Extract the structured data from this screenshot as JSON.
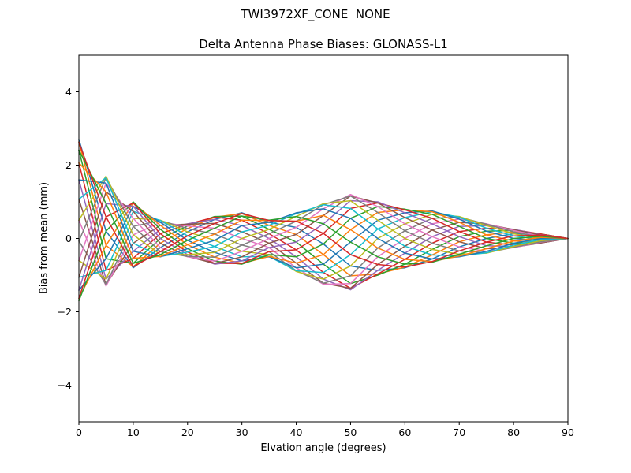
{
  "figure": {
    "suptitle": "TWI3972XF_CONE  NONE",
    "axes_title": "Delta Antenna Phase Biases: GLONASS-L1",
    "xlabel": "Elvation angle (degrees)",
    "ylabel": "Bias from mean (mm)",
    "background_color": "#ffffff",
    "axes_edge_color": "#000000",
    "text_color": "#000000"
  },
  "chart_data": {
    "type": "line",
    "title": "Delta Antenna Phase Biases: GLONASS-L1",
    "suptitle": "TWI3972XF_CONE  NONE",
    "xlabel": "Elvation angle (degrees)",
    "ylabel": "Bias from mean (mm)",
    "xlim": [
      0,
      90
    ],
    "ylim": [
      -5,
      5
    ],
    "xticks": [
      0,
      10,
      20,
      30,
      40,
      50,
      60,
      70,
      80,
      90
    ],
    "yticks": [
      -4,
      -2,
      0,
      2,
      4
    ],
    "xtick_labels": [
      "0",
      "10",
      "20",
      "30",
      "40",
      "50",
      "60",
      "70",
      "80",
      "90"
    ],
    "ytick_labels": [
      "−4",
      "−2",
      "0",
      "2",
      "4"
    ],
    "grid": false,
    "legend": false,
    "x": [
      0,
      5,
      10,
      15,
      20,
      25,
      30,
      35,
      40,
      45,
      50,
      55,
      60,
      65,
      70,
      75,
      80,
      85,
      90
    ],
    "series": [
      {
        "name": "s01",
        "color": "#1f77b4",
        "values": [
          2.7,
          0.2,
          -0.8,
          -0.25,
          0.18,
          0.52,
          0.7,
          0.44,
          0.3,
          -0.15,
          -0.75,
          -0.87,
          -0.8,
          -0.56,
          -0.23,
          0.0,
          0.13,
          0.1,
          0.0
        ]
      },
      {
        "name": "s02",
        "color": "#ff7f0e",
        "values": [
          2.63,
          -0.19,
          -0.77,
          -0.13,
          0.27,
          0.58,
          0.68,
          0.36,
          0.11,
          -0.44,
          -1.02,
          -0.97,
          -0.78,
          -0.45,
          -0.09,
          0.1,
          0.18,
          0.12,
          0.0
        ]
      },
      {
        "name": "s03",
        "color": "#2ca02c",
        "values": [
          2.41,
          -0.55,
          -0.68,
          0.0,
          0.34,
          0.6,
          0.61,
          0.25,
          -0.1,
          -0.7,
          -1.23,
          -1.0,
          -0.7,
          -0.3,
          0.05,
          0.2,
          0.22,
          0.12,
          0.0
        ]
      },
      {
        "name": "s04",
        "color": "#d62728",
        "values": [
          2.06,
          -0.87,
          -0.54,
          0.13,
          0.39,
          0.58,
          0.5,
          0.13,
          -0.31,
          -0.93,
          -1.36,
          -0.97,
          -0.57,
          -0.13,
          0.19,
          0.28,
          0.24,
          0.12,
          0.0
        ]
      },
      {
        "name": "s05",
        "color": "#9467bd",
        "values": [
          1.6,
          -1.11,
          -0.35,
          0.25,
          0.4,
          0.52,
          0.35,
          0.0,
          -0.5,
          -1.11,
          -1.4,
          -0.87,
          -0.4,
          0.05,
          0.33,
          0.35,
          0.25,
          0.1,
          0.0
        ]
      },
      {
        "name": "s06",
        "color": "#8c564b",
        "values": [
          1.07,
          -1.26,
          -0.13,
          0.36,
          0.39,
          0.41,
          0.18,
          -0.13,
          -0.67,
          -1.22,
          -1.36,
          -0.71,
          -0.21,
          0.23,
          0.44,
          0.39,
          0.24,
          0.09,
          0.0
        ]
      },
      {
        "name": "s07",
        "color": "#e377c2",
        "values": [
          0.5,
          -1.3,
          0.1,
          0.44,
          0.34,
          0.28,
          0.0,
          -0.25,
          -0.8,
          -1.25,
          -1.23,
          -0.5,
          0.0,
          0.4,
          0.53,
          0.4,
          0.22,
          0.06,
          0.0
        ]
      },
      {
        "name": "s08",
        "color": "#7f7f7f",
        "values": [
          -0.07,
          -1.26,
          0.33,
          0.49,
          0.27,
          0.12,
          -0.18,
          -0.36,
          -0.88,
          -1.22,
          -1.02,
          -0.26,
          0.21,
          0.55,
          0.58,
          0.39,
          0.18,
          0.03,
          0.0
        ]
      },
      {
        "name": "s09",
        "color": "#bcbd22",
        "values": [
          -0.6,
          -1.11,
          0.55,
          0.5,
          0.18,
          -0.05,
          -0.35,
          -0.44,
          -0.9,
          -1.11,
          -0.75,
          0.0,
          0.4,
          0.66,
          0.6,
          0.35,
          0.13,
          0.0,
          0.0
        ]
      },
      {
        "name": "s10",
        "color": "#17becf",
        "values": [
          -1.06,
          -0.87,
          0.74,
          0.49,
          0.07,
          -0.22,
          -0.5,
          -0.49,
          -0.88,
          -0.93,
          -0.44,
          0.26,
          0.57,
          0.73,
          0.58,
          0.28,
          0.07,
          -0.03,
          0.0
        ]
      },
      {
        "name": "s11",
        "color": "#1f77b4",
        "values": [
          -1.41,
          -0.55,
          0.88,
          0.44,
          -0.05,
          -0.38,
          -0.61,
          -0.5,
          -0.8,
          -0.7,
          -0.1,
          0.5,
          0.7,
          0.75,
          0.53,
          0.2,
          0.0,
          -0.06,
          0.0
        ]
      },
      {
        "name": "s12",
        "color": "#ff7f0e",
        "values": [
          -1.63,
          -0.19,
          0.97,
          0.36,
          -0.17,
          -0.51,
          -0.68,
          -0.49,
          -0.67,
          -0.44,
          0.24,
          0.71,
          0.78,
          0.73,
          0.44,
          0.1,
          -0.07,
          -0.09,
          0.0
        ]
      },
      {
        "name": "s13",
        "color": "#2ca02c",
        "values": [
          -1.7,
          0.2,
          1.0,
          0.25,
          -0.28,
          -0.62,
          -0.7,
          -0.44,
          -0.5,
          -0.15,
          0.55,
          0.87,
          0.8,
          0.66,
          0.33,
          0.0,
          -0.13,
          -0.1,
          0.0
        ]
      },
      {
        "name": "s14",
        "color": "#d62728",
        "values": [
          -1.63,
          0.59,
          0.97,
          0.13,
          -0.37,
          -0.68,
          -0.68,
          -0.36,
          -0.31,
          0.14,
          0.82,
          0.97,
          0.78,
          0.55,
          0.19,
          -0.1,
          -0.18,
          -0.12,
          0.0
        ]
      },
      {
        "name": "s15",
        "color": "#9467bd",
        "values": [
          -1.41,
          0.95,
          0.88,
          0.0,
          -0.44,
          -0.7,
          -0.61,
          -0.25,
          -0.1,
          0.4,
          1.03,
          1.0,
          0.7,
          0.4,
          0.05,
          -0.2,
          -0.22,
          -0.12,
          0.0
        ]
      },
      {
        "name": "s16",
        "color": "#8c564b",
        "values": [
          -1.06,
          1.27,
          0.74,
          -0.13,
          -0.49,
          -0.68,
          -0.5,
          -0.13,
          0.11,
          0.63,
          1.16,
          0.97,
          0.57,
          0.23,
          -0.09,
          -0.28,
          -0.24,
          -0.12,
          0.0
        ]
      },
      {
        "name": "s17",
        "color": "#e377c2",
        "values": [
          -0.6,
          1.51,
          0.55,
          -0.25,
          -0.5,
          -0.62,
          -0.35,
          0.0,
          0.3,
          0.81,
          1.2,
          0.87,
          0.4,
          0.05,
          -0.23,
          -0.35,
          -0.25,
          -0.1,
          0.0
        ]
      },
      {
        "name": "s18",
        "color": "#7f7f7f",
        "values": [
          -0.07,
          1.66,
          0.33,
          -0.36,
          -0.49,
          -0.51,
          -0.18,
          0.13,
          0.47,
          0.92,
          1.16,
          0.71,
          0.21,
          -0.13,
          -0.34,
          -0.39,
          -0.24,
          -0.09,
          0.0
        ]
      },
      {
        "name": "s19",
        "color": "#bcbd22",
        "values": [
          0.5,
          1.7,
          0.1,
          -0.44,
          -0.44,
          -0.38,
          0.0,
          0.25,
          0.6,
          0.95,
          1.03,
          0.5,
          0.0,
          -0.3,
          -0.43,
          -0.4,
          -0.22,
          -0.06,
          0.0
        ]
      },
      {
        "name": "s20",
        "color": "#17becf",
        "values": [
          1.07,
          1.66,
          -0.13,
          -0.49,
          -0.37,
          -0.22,
          0.18,
          0.36,
          0.68,
          0.92,
          0.82,
          0.26,
          -0.21,
          -0.45,
          -0.48,
          -0.39,
          -0.18,
          -0.03,
          0.0
        ]
      },
      {
        "name": "s21",
        "color": "#1f77b4",
        "values": [
          1.6,
          1.51,
          -0.35,
          -0.5,
          -0.28,
          -0.05,
          0.35,
          0.44,
          0.7,
          0.81,
          0.55,
          0.0,
          -0.4,
          -0.56,
          -0.5,
          -0.35,
          -0.13,
          0.0,
          0.0
        ]
      },
      {
        "name": "s22",
        "color": "#ff7f0e",
        "values": [
          2.06,
          1.27,
          -0.54,
          -0.49,
          -0.17,
          0.12,
          0.5,
          0.49,
          0.47,
          0.63,
          0.24,
          -0.26,
          -0.57,
          -0.63,
          -0.48,
          -0.28,
          -0.07,
          0.03,
          0.0
        ]
      },
      {
        "name": "s23",
        "color": "#2ca02c",
        "values": [
          2.41,
          0.95,
          -0.68,
          -0.44,
          -0.05,
          0.28,
          0.61,
          0.5,
          0.6,
          0.4,
          -0.1,
          -0.5,
          -0.7,
          -0.65,
          -0.43,
          -0.2,
          0.0,
          0.06,
          0.0
        ]
      },
      {
        "name": "s24",
        "color": "#d62728",
        "values": [
          2.63,
          0.59,
          -0.77,
          -0.36,
          0.07,
          0.41,
          0.68,
          0.49,
          0.47,
          0.14,
          -0.44,
          -0.71,
          -0.78,
          -0.63,
          -0.34,
          -0.1,
          0.07,
          0.09,
          0.0
        ]
      }
    ]
  }
}
